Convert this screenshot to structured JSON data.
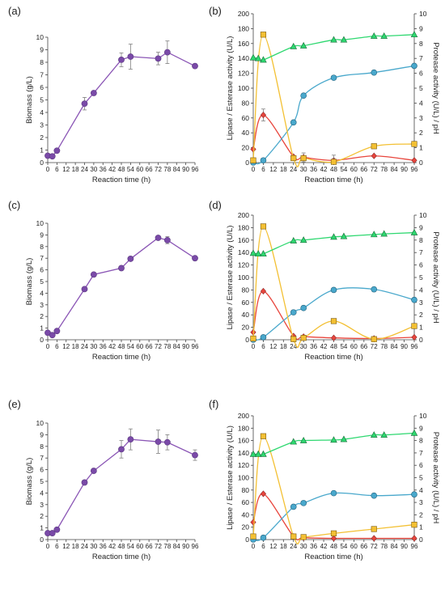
{
  "figure_colors": {
    "biomass": "#8a55b5",
    "biomass_marker": "#7a4aa8",
    "lipase": "#e8453c",
    "esterase": "#49a8cc",
    "protease": "#f3c033",
    "ph": "#2ed870",
    "error_bar": "#7f7f7f"
  },
  "x_ticks": [
    "0",
    "6",
    "12",
    "18",
    "24",
    "30",
    "36",
    "42",
    "48",
    "54",
    "60",
    "66",
    "72",
    "78",
    "84",
    "90",
    "96"
  ],
  "chart_data": [
    {
      "panel": "(a)",
      "type": "line",
      "xlabel": "Reaction time (h)",
      "ylabel": "Biomass (g/L)",
      "xlim": [
        0,
        96
      ],
      "ylim": [
        0,
        10
      ],
      "grid": false,
      "series": [
        {
          "key": "biomass",
          "x": [
            0,
            3,
            6,
            24,
            30,
            48,
            54,
            72,
            78,
            96
          ],
          "values": [
            0.55,
            0.5,
            0.95,
            4.7,
            5.55,
            8.2,
            8.45,
            8.3,
            8.8,
            7.7
          ],
          "error": [
            0.15,
            0,
            0,
            0.5,
            0,
            0.55,
            1.0,
            0.5,
            0.9,
            0
          ]
        }
      ]
    },
    {
      "panel": "(b)",
      "type": "line",
      "xlabel": "Reaction time (h)",
      "ylabel": "Lipase / Esterase activity (U/L)",
      "y2label": "Protease activity (U/L)  /  pH",
      "xlim": [
        0,
        96
      ],
      "ylim": [
        0,
        200
      ],
      "y2lim": [
        0,
        10
      ],
      "grid": false,
      "series": [
        {
          "key": "lipase",
          "axis": "left",
          "x": [
            0,
            6,
            24,
            30,
            48,
            72,
            96
          ],
          "values": [
            18,
            64,
            8,
            7,
            3,
            9,
            3
          ],
          "error": [
            0,
            8,
            0,
            6,
            0,
            0,
            0
          ]
        },
        {
          "key": "esterase",
          "axis": "left",
          "x": [
            0,
            6,
            24,
            30,
            48,
            72,
            96
          ],
          "values": [
            0,
            3,
            54,
            90,
            114,
            121,
            130
          ],
          "error": [
            0,
            0,
            0,
            0,
            0,
            0,
            0
          ]
        },
        {
          "key": "protease",
          "axis": "right",
          "x": [
            0,
            6,
            24,
            30,
            48,
            72,
            96
          ],
          "values": [
            0.15,
            8.6,
            0.3,
            0.3,
            0.05,
            1.1,
            1.25
          ],
          "error": [
            0,
            0,
            0,
            0,
            0.45,
            0,
            0
          ]
        },
        {
          "key": "ph",
          "axis": "right",
          "x": [
            0,
            3,
            6,
            24,
            30,
            48,
            54,
            72,
            78,
            96
          ],
          "values": [
            7.05,
            7.0,
            6.9,
            7.8,
            7.85,
            8.25,
            8.25,
            8.5,
            8.5,
            8.6
          ],
          "error": [
            0,
            0,
            0,
            0,
            0,
            0,
            0,
            0,
            0,
            0
          ]
        }
      ]
    },
    {
      "panel": "(c)",
      "type": "line",
      "xlabel": "Reaction time (h)",
      "ylabel": "Biomass (g/L)",
      "xlim": [
        0,
        96
      ],
      "ylim": [
        0,
        10
      ],
      "grid": false,
      "series": [
        {
          "key": "biomass",
          "x": [
            0,
            3,
            6,
            24,
            30,
            48,
            54,
            72,
            78,
            96
          ],
          "values": [
            0.6,
            0.4,
            0.75,
            4.35,
            5.6,
            6.15,
            6.95,
            8.75,
            8.55,
            7.0
          ],
          "error": [
            0,
            0,
            0,
            0,
            0,
            0,
            0,
            0,
            0.3,
            0
          ]
        }
      ]
    },
    {
      "panel": "(d)",
      "type": "line",
      "xlabel": "Reaction time (h)",
      "ylabel": "Lipase / Esterase activity (U/L)",
      "y2label": "Protease activity (U/L)  /  pH",
      "xlim": [
        0,
        96
      ],
      "ylim": [
        0,
        200
      ],
      "y2lim": [
        0,
        10
      ],
      "grid": false,
      "series": [
        {
          "key": "lipase",
          "axis": "left",
          "x": [
            0,
            6,
            24,
            30,
            48,
            72,
            96
          ],
          "values": [
            12,
            78,
            6,
            5,
            3,
            2,
            4
          ],
          "error": [
            0,
            0,
            0,
            0,
            0,
            0,
            0
          ]
        },
        {
          "key": "esterase",
          "axis": "left",
          "x": [
            0,
            6,
            24,
            30,
            48,
            72,
            96
          ],
          "values": [
            0,
            4,
            44,
            51,
            80,
            81,
            64
          ],
          "error": [
            0,
            0,
            0,
            0,
            0,
            0,
            0
          ]
        },
        {
          "key": "protease",
          "axis": "right",
          "x": [
            0,
            6,
            24,
            30,
            48,
            72,
            96
          ],
          "values": [
            0.1,
            9.1,
            0.05,
            0.15,
            1.5,
            0.05,
            1.1
          ],
          "error": [
            0,
            0,
            0,
            0,
            0,
            0,
            0
          ]
        },
        {
          "key": "ph",
          "axis": "right",
          "x": [
            0,
            3,
            6,
            24,
            30,
            48,
            54,
            72,
            78,
            96
          ],
          "values": [
            6.95,
            6.9,
            6.9,
            7.95,
            8.0,
            8.25,
            8.3,
            8.45,
            8.5,
            8.6
          ],
          "error": [
            0,
            0,
            0,
            0,
            0,
            0,
            0,
            0,
            0,
            0
          ]
        }
      ]
    },
    {
      "panel": "(e)",
      "type": "line",
      "xlabel": "Reaction time (h)",
      "ylabel": "Biomass (g/L)",
      "xlim": [
        0,
        96
      ],
      "ylim": [
        0,
        10
      ],
      "grid": false,
      "series": [
        {
          "key": "biomass",
          "x": [
            0,
            3,
            6,
            24,
            30,
            48,
            54,
            72,
            78,
            96
          ],
          "values": [
            0.55,
            0.55,
            0.85,
            4.9,
            5.9,
            7.75,
            8.6,
            8.4,
            8.35,
            7.25
          ],
          "error": [
            0,
            0,
            0,
            0,
            0,
            0.75,
            0.9,
            1.0,
            0.65,
            0.45
          ]
        }
      ]
    },
    {
      "panel": "(f)",
      "type": "line",
      "xlabel": "Reaction time (h)",
      "ylabel": "Lipase / Esterase activity (U/L)",
      "y2label": "Protease activity (U/L)  /  pH",
      "xlim": [
        0,
        96
      ],
      "ylim": [
        0,
        200
      ],
      "y2lim": [
        0,
        10
      ],
      "grid": false,
      "series": [
        {
          "key": "lipase",
          "axis": "left",
          "x": [
            0,
            6,
            24,
            30,
            48,
            72,
            96
          ],
          "values": [
            28,
            74,
            5,
            3,
            2,
            2,
            2
          ],
          "error": [
            0,
            0,
            0,
            0,
            0,
            0,
            0
          ]
        },
        {
          "key": "esterase",
          "axis": "left",
          "x": [
            0,
            6,
            24,
            30,
            48,
            72,
            96
          ],
          "values": [
            0,
            3,
            53,
            59,
            75,
            71,
            73
          ],
          "error": [
            0,
            0,
            0,
            0,
            0,
            0,
            0
          ]
        },
        {
          "key": "protease",
          "axis": "right",
          "x": [
            0,
            6,
            24,
            30,
            48,
            72,
            96
          ],
          "values": [
            0.25,
            8.35,
            0.25,
            0.2,
            0.5,
            0.85,
            1.2
          ],
          "error": [
            0,
            0,
            0,
            0,
            0,
            0,
            0
          ]
        },
        {
          "key": "ph",
          "axis": "right",
          "x": [
            0,
            3,
            6,
            24,
            30,
            48,
            54,
            72,
            78,
            96
          ],
          "values": [
            6.9,
            6.9,
            6.9,
            7.9,
            8.0,
            8.05,
            8.1,
            8.45,
            8.45,
            8.6
          ],
          "error": [
            0,
            0,
            0,
            0,
            0,
            0,
            0,
            0,
            0,
            0
          ]
        }
      ]
    }
  ]
}
